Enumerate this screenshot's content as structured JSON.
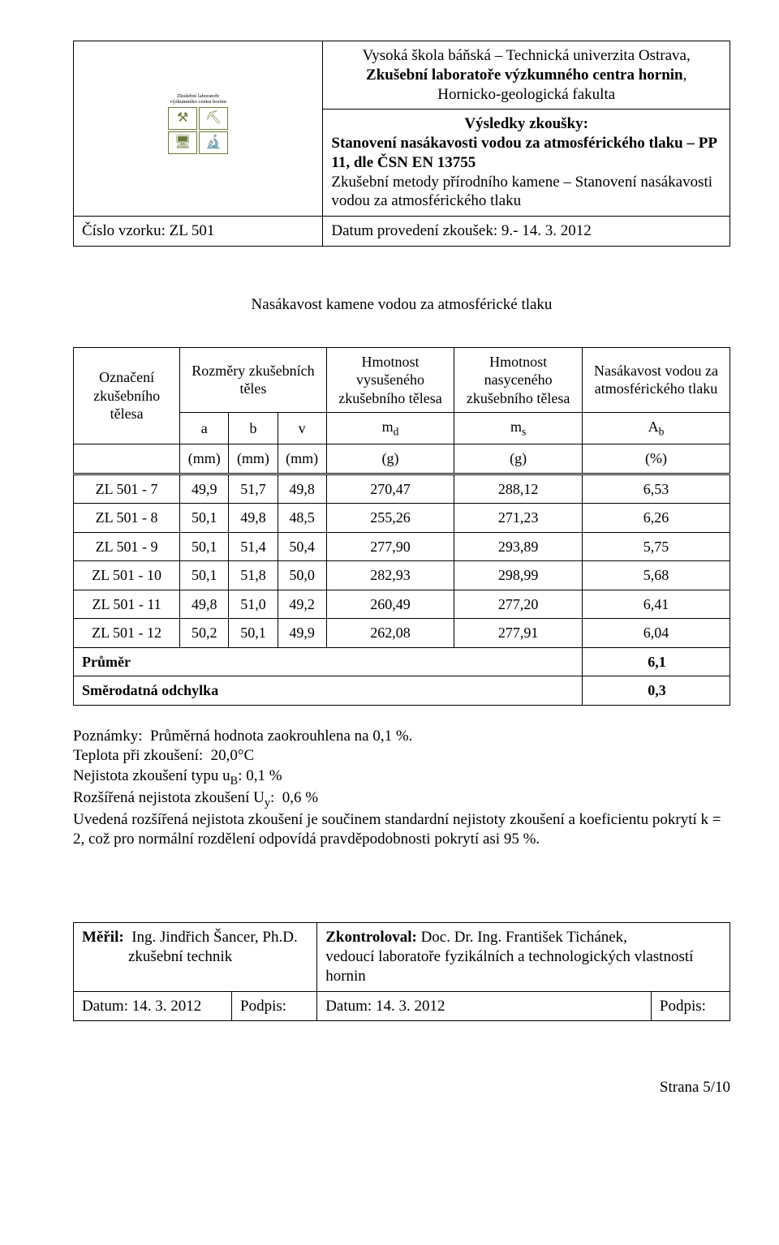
{
  "logo": {
    "topText": "Zkušební laboratoře",
    "botText": "výzkumného centra hornin"
  },
  "header": {
    "univLine1": "Vysoká škola báňská – Technická univerzita Ostrava,",
    "univLine2": "Zkušební laboratoře výzkumného centra hornin",
    "univLine2Suffix": ",",
    "univLine3": "Hornicko-geologická fakulta",
    "title1": "Výsledky zkoušky:",
    "title2": "Stanovení nasákavosti vodou za atmosférického tlaku – PP 11, dle ČSN EN 13755",
    "title3": "Zkušební metody přírodního kamene – Stanovení nasákavosti vodou za atmosférického tlaku",
    "sampleLabel": "Číslo vzorku: ZL 501",
    "dateLabel": "Datum provedení zkoušek: 9.- 14. 3. 2012"
  },
  "sectionTitle": "Nasákavost kamene vodou za atmosférické tlaku",
  "columns": {
    "c1": "Označení zkušebního tělesa",
    "c2": "Rozměry zkušebních těles",
    "c3": "Hmotnost vysušeného zkušebního tělesa",
    "c4": "Hmotnost nasyceného zkušebního tělesa",
    "c5": "Nasákavost vodou za atmosférického tlaku",
    "sym": {
      "a": "a",
      "b": "b",
      "v": "v",
      "md": "m",
      "mdSub": "d",
      "ms": "m",
      "msSub": "s",
      "ab": "A",
      "abSub": "b"
    },
    "units": {
      "mm": "(mm)",
      "g": "(g)",
      "pct": "(%)"
    }
  },
  "rows": [
    {
      "id": "ZL 501 - 7",
      "a": "49,9",
      "b": "51,7",
      "v": "49,8",
      "md": "270,47",
      "ms": "288,12",
      "ab": "6,53"
    },
    {
      "id": "ZL 501 - 8",
      "a": "50,1",
      "b": "49,8",
      "v": "48,5",
      "md": "255,26",
      "ms": "271,23",
      "ab": "6,26"
    },
    {
      "id": "ZL 501 - 9",
      "a": "50,1",
      "b": "51,4",
      "v": "50,4",
      "md": "277,90",
      "ms": "293,89",
      "ab": "5,75"
    },
    {
      "id": "ZL 501 - 10",
      "a": "50,1",
      "b": "51,8",
      "v": "50,0",
      "md": "282,93",
      "ms": "298,99",
      "ab": "5,68"
    },
    {
      "id": "ZL 501 - 11",
      "a": "49,8",
      "b": "51,0",
      "v": "49,2",
      "md": "260,49",
      "ms": "277,20",
      "ab": "6,41"
    },
    {
      "id": "ZL 501 - 12",
      "a": "50,2",
      "b": "50,1",
      "v": "49,9",
      "md": "262,08",
      "ms": "277,91",
      "ab": "6,04"
    }
  ],
  "summary": {
    "meanLabel": "Průměr",
    "meanVal": "6,1",
    "sdLabel": "Směrodatná odchylka",
    "sdVal": "0,3"
  },
  "notes": {
    "l1a": "Poznámky:",
    "l1b": "Průměrná hodnota zaokrouhlena na 0,1 %.",
    "l2": "Teplota při zkoušení:  20,0°C",
    "l3a": "Nejistota zkoušení typu u",
    "l3sub": "B",
    "l3b": ": 0,1 %",
    "l4a": "Rozšířená nejistota zkoušení U",
    "l4sub": "y",
    "l4b": ":  0,6 %",
    "l5": "Uvedená rozšířená nejistota zkoušení je součinem standardní nejistoty zkoušení a koeficientu pokrytí k = 2, což pro normální rozdělení odpovídá pravděpodobnosti pokrytí asi 95 %."
  },
  "sign": {
    "measLabel": "Měřil:",
    "measName": "Ing. Jindřich Šancer, Ph.D.",
    "measRole": "zkušební technik",
    "checkLabel": "Zkontroloval:",
    "checkName": "Doc. Dr. Ing. František Tichánek,",
    "checkRole": "vedoucí laboratoře fyzikálních  a technologických vlastností hornin",
    "dateLabel1": "Datum: 14. 3. 2012",
    "sigLabel1": "Podpis:",
    "dateLabel2": "Datum: 14. 3. 2012",
    "sigLabel2": "Podpis:"
  },
  "pageNum": "Strana 5/10"
}
